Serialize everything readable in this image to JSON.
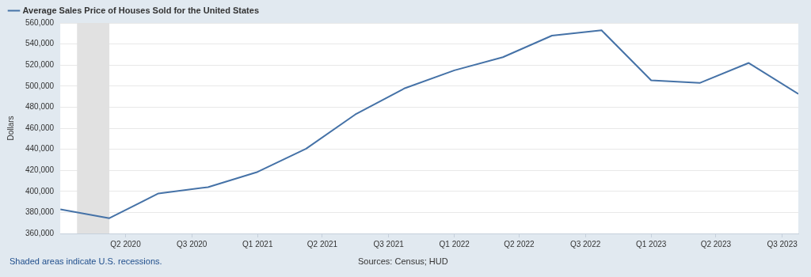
{
  "chart_data": {
    "type": "line",
    "x": [
      "2020-01",
      "2020-04",
      "2020-07",
      "2020-10",
      "2021-01",
      "2021-04",
      "2021-07",
      "2021-10",
      "2022-01",
      "2022-04",
      "2022-07",
      "2022-10",
      "2023-01",
      "2023-04",
      "2023-07",
      "2023-10"
    ],
    "series": [
      {
        "name": "Average Sales Price of Houses Sold for the United States",
        "color": "#4572a7",
        "values": [
          383000,
          374500,
          398000,
          404000,
          418500,
          440500,
          473000,
          498000,
          515000,
          527500,
          548000,
          553000,
          505500,
          503000,
          522000,
          492500
        ]
      }
    ],
    "xlim": [
      "2020-01-01",
      "2023-10-01"
    ],
    "xticks": [
      {
        "value": "2020-05-01",
        "label": "Q2 2020"
      },
      {
        "value": "2020-09-01",
        "label": "Q3 2020"
      },
      {
        "value": "2021-01-01",
        "label": "Q1 2021"
      },
      {
        "value": "2021-05-01",
        "label": "Q2 2021"
      },
      {
        "value": "2021-09-01",
        "label": "Q3 2021"
      },
      {
        "value": "2022-01-01",
        "label": "Q1 2022"
      },
      {
        "value": "2022-05-01",
        "label": "Q2 2022"
      },
      {
        "value": "2022-09-01",
        "label": "Q3 2022"
      },
      {
        "value": "2023-01-01",
        "label": "Q1 2023"
      },
      {
        "value": "2023-05-01",
        "label": "Q2 2023"
      },
      {
        "value": "2023-09-01",
        "label": "Q3 2023"
      }
    ],
    "ylim": [
      360000,
      560000
    ],
    "yticks": [
      {
        "value": 360000,
        "label": "360,000"
      },
      {
        "value": 380000,
        "label": "380,000"
      },
      {
        "value": 400000,
        "label": "400,000"
      },
      {
        "value": 420000,
        "label": "420,000"
      },
      {
        "value": 440000,
        "label": "440,000"
      },
      {
        "value": 460000,
        "label": "460,000"
      },
      {
        "value": 480000,
        "label": "480,000"
      },
      {
        "value": 500000,
        "label": "500,000"
      },
      {
        "value": 520000,
        "label": "520,000"
      },
      {
        "value": 540000,
        "label": "540,000"
      },
      {
        "value": 560000,
        "label": "560,000"
      }
    ],
    "ylabel": "Dollars",
    "bands": [
      {
        "axis": "x",
        "from": "2020-02-01",
        "to": "2020-04-01",
        "color": "#e1e1e1"
      }
    ],
    "grid": "y",
    "legend": "top left",
    "marker": "none",
    "line_style": "solid",
    "annotations": [
      "Shaded areas indicate U.S. recessions.",
      "Sources: Census; HUD"
    ]
  }
}
